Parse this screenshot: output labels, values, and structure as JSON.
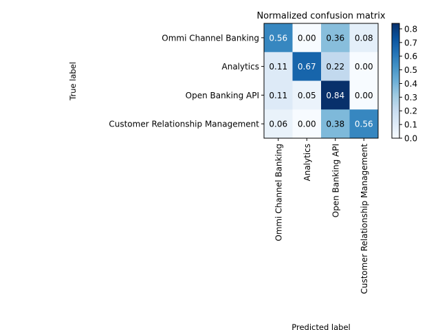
{
  "chart_data": {
    "type": "heatmap",
    "title": "Normalized confusion matrix",
    "xlabel": "Predicted label",
    "ylabel": "True label",
    "row_labels": [
      "Ommi Channel Banking",
      "Analytics",
      "Open Banking API",
      "Customer Relationship Management"
    ],
    "col_labels": [
      "Ommi Channel Banking",
      "Analytics",
      "Open Banking API",
      "Customer Relationship Management"
    ],
    "values": [
      [
        0.56,
        0.0,
        0.36,
        0.08
      ],
      [
        0.11,
        0.67,
        0.22,
        0.0
      ],
      [
        0.11,
        0.05,
        0.84,
        0.0
      ],
      [
        0.06,
        0.0,
        0.38,
        0.56
      ]
    ],
    "value_labels": [
      [
        "0.56",
        "0.00",
        "0.36",
        "0.08"
      ],
      [
        "0.11",
        "0.67",
        "0.22",
        "0.00"
      ],
      [
        "0.11",
        "0.05",
        "0.84",
        "0.00"
      ],
      [
        "0.06",
        "0.00",
        "0.38",
        "0.56"
      ]
    ],
    "colormap": "Blues",
    "colorbar": {
      "range": [
        0.0,
        0.84
      ],
      "ticks": [
        0.0,
        0.1,
        0.2,
        0.3,
        0.4,
        0.5,
        0.6,
        0.7,
        0.8
      ],
      "tick_labels": [
        "0.0",
        "0.1",
        "0.2",
        "0.3",
        "0.4",
        "0.5",
        "0.6",
        "0.7",
        "0.8"
      ]
    },
    "text_color_dark": "#000000",
    "text_color_light": "#ffffff",
    "grid": false
  }
}
